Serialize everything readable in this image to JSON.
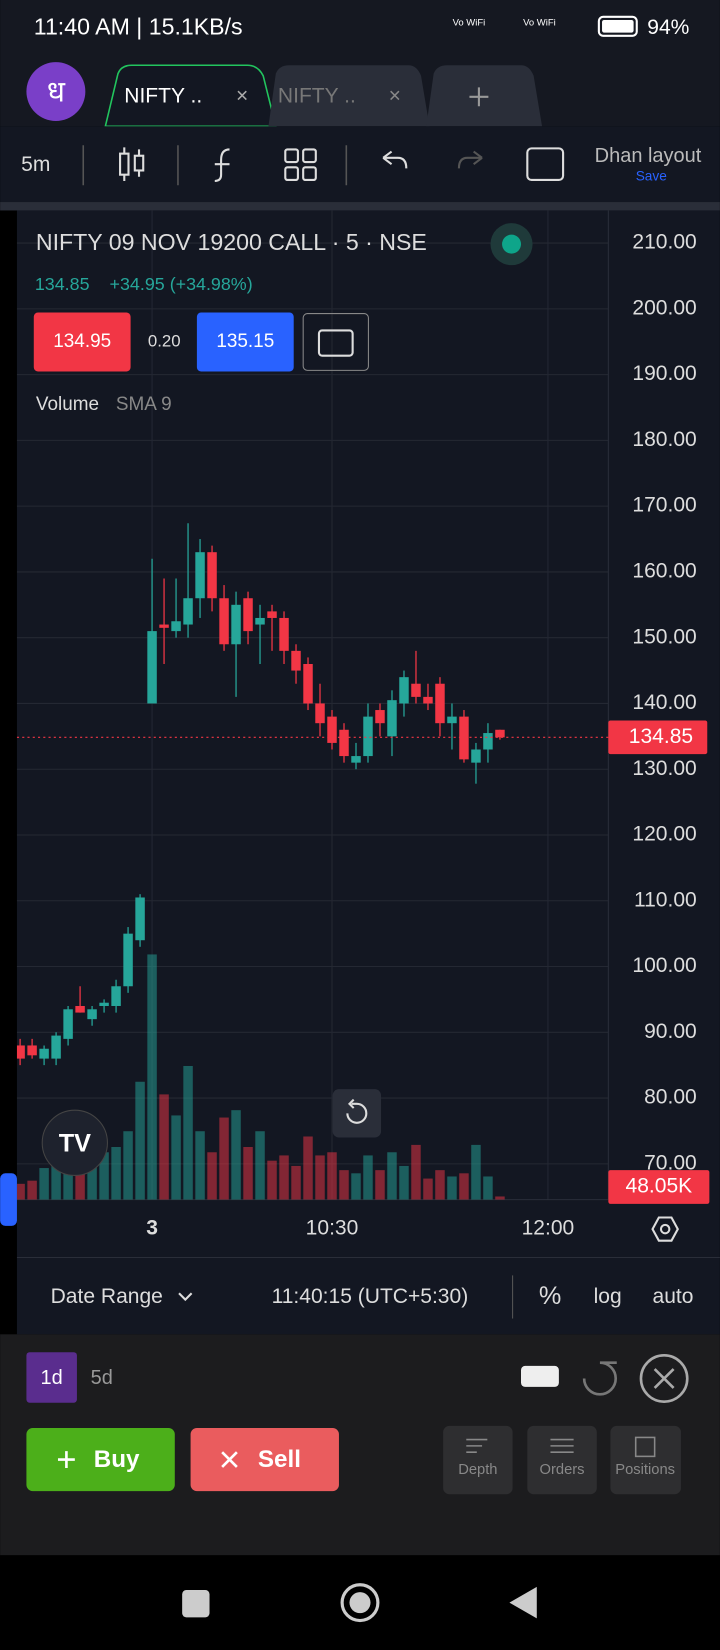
{
  "status": {
    "time": "11:40 AM | 15.1KB/s",
    "wifi1": "Vo WiFi",
    "wifi2": "Vo WiFi",
    "battery": "94%"
  },
  "tabs": {
    "logo": "ध",
    "tab1": "NIFTY ..",
    "tab2": "NIFTY .."
  },
  "toolbar": {
    "interval": "5m",
    "layout": "Dhan layout",
    "save": "Save"
  },
  "header": {
    "symbol": "NIFTY 09 NOV 19200 CALL · 5 · NSE",
    "last": "134.85",
    "change": "+34.95 (+34.98%)",
    "bid": "134.95",
    "spread": "0.20",
    "ask": "135.15",
    "indicator": "Volume",
    "sma": "SMA 9"
  },
  "chart": {
    "type": "candlestick",
    "up_color": "#26a69a",
    "down_color": "#f23645",
    "grid": true,
    "ylim": [
      64.56,
      214.96
    ],
    "yticks": [
      {
        "value": 210,
        "label": "210.00"
      },
      {
        "value": 200,
        "label": "200.00"
      },
      {
        "value": 190,
        "label": "190.00"
      },
      {
        "value": 180,
        "label": "180.00"
      },
      {
        "value": 170,
        "label": "170.00"
      },
      {
        "value": 160,
        "label": "160.00"
      },
      {
        "value": 150,
        "label": "150.00"
      },
      {
        "value": 140,
        "label": "140.00"
      },
      {
        "value": 130,
        "label": "130.00"
      },
      {
        "value": 120,
        "label": "120.00"
      },
      {
        "value": 110,
        "label": "110.00"
      },
      {
        "value": 100,
        "label": "100.00"
      },
      {
        "value": 90,
        "label": "90.00"
      },
      {
        "value": 80,
        "label": "80.00"
      },
      {
        "value": 70,
        "label": "70.00"
      }
    ],
    "xticks": [
      {
        "value": 11,
        "label": "3"
      },
      {
        "value": 26,
        "label": "10:30"
      },
      {
        "value": 44,
        "label": "12:00"
      }
    ],
    "last_price": 134.85,
    "vlim": [
      0,
      3760
    ],
    "last_volume": {
      "value": 48.05,
      "label": "48.05K"
    },
    "candles": [
      {
        "o": 88,
        "h": 89,
        "l": 85,
        "c": 86,
        "v": 60
      },
      {
        "o": 88,
        "h": 89,
        "l": 86,
        "c": 86.5,
        "v": 72
      },
      {
        "o": 86,
        "h": 88,
        "l": 85,
        "c": 87.5,
        "v": 120
      },
      {
        "o": 86,
        "h": 90,
        "l": 85,
        "c": 89.5,
        "v": 160
      },
      {
        "o": 89,
        "h": 94,
        "l": 88,
        "c": 93.5,
        "v": 140
      },
      {
        "o": 94,
        "h": 97,
        "l": 93,
        "c": 93,
        "v": 160
      },
      {
        "o": 92,
        "h": 94,
        "l": 91,
        "c": 93.5,
        "v": 200
      },
      {
        "o": 94,
        "h": 95,
        "l": 93,
        "c": 94.5,
        "v": 180
      },
      {
        "o": 94,
        "h": 98,
        "l": 93,
        "c": 97,
        "v": 200
      },
      {
        "o": 97,
        "h": 106,
        "l": 96,
        "c": 105,
        "v": 260
      },
      {
        "o": 104,
        "h": 111,
        "l": 103,
        "c": 110.5,
        "v": 448
      },
      {
        "o": 140,
        "h": 162,
        "l": 140,
        "c": 151,
        "v": 932
      },
      {
        "o": 152,
        "h": 159,
        "l": 146,
        "c": 151.5,
        "v": 400
      },
      {
        "o": 151,
        "h": 159,
        "l": 150,
        "c": 152.5,
        "v": 320
      },
      {
        "o": 152,
        "h": 167.4,
        "l": 150,
        "c": 156,
        "v": 508
      },
      {
        "o": 156,
        "h": 165,
        "l": 153,
        "c": 163,
        "v": 260
      },
      {
        "o": 163,
        "h": 164,
        "l": 154,
        "c": 156,
        "v": 180
      },
      {
        "o": 156,
        "h": 158,
        "l": 148,
        "c": 149,
        "v": 312
      },
      {
        "o": 149,
        "h": 157,
        "l": 141,
        "c": 155,
        "v": 340
      },
      {
        "o": 156,
        "h": 157,
        "l": 149,
        "c": 151,
        "v": 200
      },
      {
        "o": 152,
        "h": 155,
        "l": 146,
        "c": 153,
        "v": 260
      },
      {
        "o": 154,
        "h": 155,
        "l": 148,
        "c": 153,
        "v": 148
      },
      {
        "o": 153,
        "h": 154,
        "l": 146,
        "c": 148,
        "v": 168
      },
      {
        "o": 148,
        "h": 149,
        "l": 143,
        "c": 145,
        "v": 128
      },
      {
        "o": 146,
        "h": 147,
        "l": 139,
        "c": 140,
        "v": 240
      },
      {
        "o": 140,
        "h": 143,
        "l": 135,
        "c": 137,
        "v": 168
      },
      {
        "o": 138,
        "h": 139,
        "l": 133,
        "c": 134,
        "v": 180
      },
      {
        "o": 136,
        "h": 137,
        "l": 131,
        "c": 132,
        "v": 112
      },
      {
        "o": 131,
        "h": 134,
        "l": 130,
        "c": 132,
        "v": 100
      },
      {
        "o": 132,
        "h": 140,
        "l": 131,
        "c": 138,
        "v": 168
      },
      {
        "o": 139,
        "h": 140,
        "l": 135,
        "c": 137,
        "v": 112
      },
      {
        "o": 135,
        "h": 142,
        "l": 132,
        "c": 140.5,
        "v": 180
      },
      {
        "o": 140,
        "h": 145,
        "l": 138,
        "c": 144,
        "v": 128
      },
      {
        "o": 143,
        "h": 148,
        "l": 140,
        "c": 141,
        "v": 208
      },
      {
        "o": 141,
        "h": 143,
        "l": 139,
        "c": 140,
        "v": 80
      },
      {
        "o": 143,
        "h": 144,
        "l": 135,
        "c": 137,
        "v": 112
      },
      {
        "o": 137,
        "h": 140,
        "l": 133,
        "c": 138,
        "v": 88
      },
      {
        "o": 138,
        "h": 139,
        "l": 131,
        "c": 131.5,
        "v": 100
      },
      {
        "o": 131,
        "h": 134,
        "l": 127.8,
        "c": 133,
        "v": 208
      },
      {
        "o": 133,
        "h": 137,
        "l": 131,
        "c": 135.5,
        "v": 88
      },
      {
        "o": 136,
        "h": 136,
        "l": 134.5,
        "c": 134.85,
        "v": 12
      }
    ]
  },
  "range_bar": {
    "date_range": "Date Range",
    "clock": "11:40:15 (UTC+5:30)",
    "percent": "%",
    "log": "log",
    "auto": "auto"
  },
  "periods": {
    "p1": "1d",
    "p2": "5d"
  },
  "orders": {
    "buy": "Buy",
    "sell": "Sell",
    "depth": "Depth",
    "orders": "Orders",
    "positions": "Positions"
  }
}
